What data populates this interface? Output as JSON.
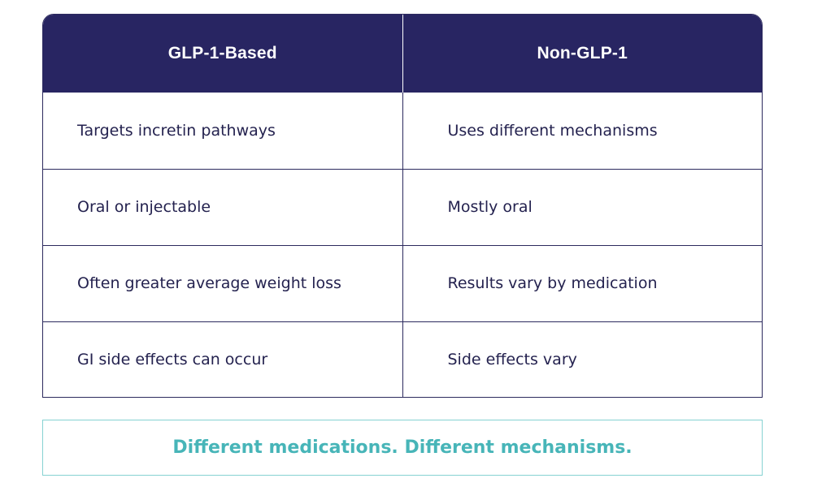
{
  "table": {
    "headers": [
      "GLP-1-Based",
      "Non-GLP-1"
    ],
    "rows": [
      [
        "Targets incretin pathways",
        "Uses different mechanisms"
      ],
      [
        "Oral or injectable",
        "Mostly oral"
      ],
      [
        "Often greater average weight loss",
        "Results vary by medication"
      ],
      [
        "GI side effects can occur",
        "Side effects vary"
      ]
    ]
  },
  "tagline": "Different medications. Different mechanisms.",
  "colors": {
    "header_bg": "#282562",
    "header_text": "#ffffff",
    "body_text": "#24224f",
    "border": "#2c2a5e",
    "tagline_text": "#47b5b8",
    "tagline_border": "#86d2d2"
  }
}
